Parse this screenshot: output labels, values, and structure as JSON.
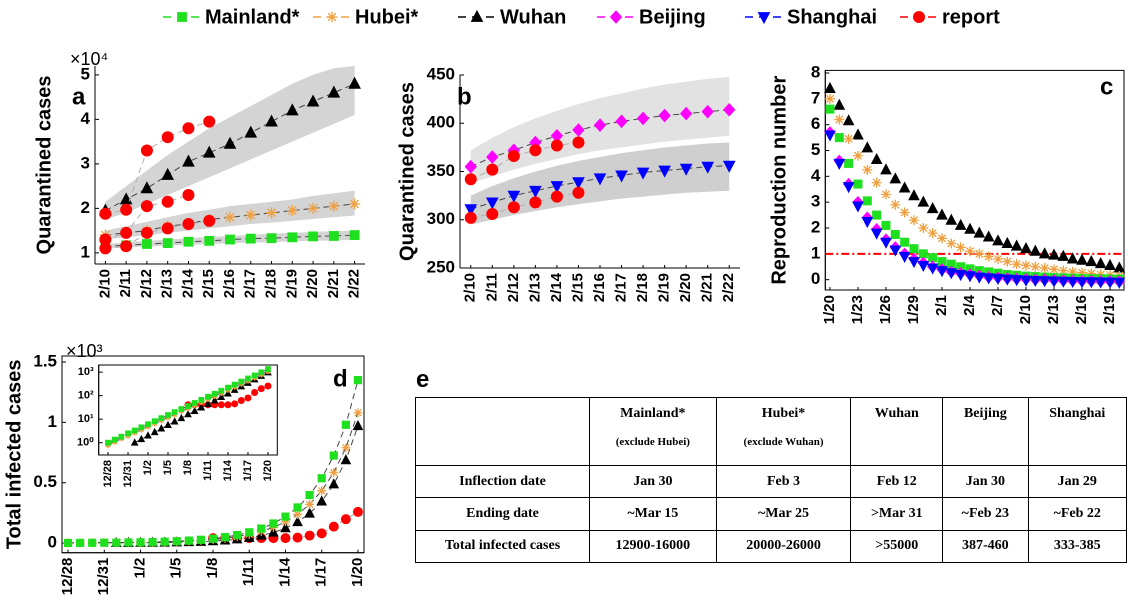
{
  "legend": {
    "entries": [
      {
        "name": "Mainland*",
        "color": "#1ee01e",
        "marker": "square"
      },
      {
        "name": "Hubei*",
        "color": "#f0a040",
        "marker": "asterisk"
      },
      {
        "name": "Wuhan",
        "color": "#000000",
        "marker": "triangle"
      },
      {
        "name": "Beijing",
        "color": "#ff00ff",
        "marker": "diamond"
      },
      {
        "name": "Shanghai",
        "color": "#0000ff",
        "marker": "down"
      },
      {
        "name": "report",
        "color": "#ff0000",
        "marker": "circle"
      }
    ]
  },
  "chart_data": [
    {
      "type": "line",
      "label": "a",
      "y_label": "Quarantined cases",
      "y_multiplier": "×10⁴",
      "connect": true,
      "categories": [
        "2/10",
        "2/11",
        "2/12",
        "2/13",
        "2/14",
        "2/15",
        "2/16",
        "2/17",
        "2/18",
        "2/19",
        "2/20",
        "2/21",
        "2/22"
      ],
      "ylim": [
        0.75,
        5.2
      ],
      "yticks": [
        1,
        2,
        3,
        4,
        5
      ],
      "bands": [
        {
          "color": "#d4d4d4",
          "lower": [
            1.75,
            1.9,
            2.1,
            2.3,
            2.5,
            2.7,
            2.9,
            3.1,
            3.3,
            3.5,
            3.7,
            3.9,
            4.1
          ],
          "upper": [
            2.15,
            2.5,
            2.85,
            3.2,
            3.5,
            3.8,
            4.05,
            4.3,
            4.55,
            4.8,
            5.0,
            5.15,
            5.2
          ]
        },
        {
          "color": "#d4d4d4",
          "lower": [
            1.3,
            1.35,
            1.4,
            1.45,
            1.5,
            1.55,
            1.6,
            1.65,
            1.68,
            1.72,
            1.76,
            1.8,
            1.84
          ],
          "upper": [
            1.5,
            1.6,
            1.7,
            1.8,
            1.9,
            1.97,
            2.05,
            2.1,
            2.15,
            2.2,
            2.28,
            2.34,
            2.4
          ]
        },
        {
          "color": "#d4d4d4",
          "lower": [
            1.1,
            1.12,
            1.14,
            1.16,
            1.18,
            1.2,
            1.22,
            1.23,
            1.24,
            1.26,
            1.27,
            1.28,
            1.29
          ],
          "upper": [
            1.2,
            1.24,
            1.27,
            1.3,
            1.33,
            1.36,
            1.38,
            1.41,
            1.43,
            1.45,
            1.47,
            1.49,
            1.5
          ]
        }
      ],
      "series": [
        {
          "name": "Wuhan",
          "color": "#000000",
          "marker": "triangle",
          "values": [
            1.95,
            2.2,
            2.45,
            2.75,
            3.05,
            3.25,
            3.45,
            3.7,
            3.95,
            4.2,
            4.4,
            4.6,
            4.8
          ]
        },
        {
          "name": "Hubei*",
          "color": "#f0a040",
          "marker": "asterisk",
          "values": [
            1.4,
            1.45,
            1.5,
            1.6,
            1.65,
            1.75,
            1.8,
            1.85,
            1.9,
            1.95,
            2.0,
            2.05,
            2.1
          ]
        },
        {
          "name": "Mainland*",
          "color": "#1ee01e",
          "marker": "square",
          "values": [
            1.15,
            1.17,
            1.2,
            1.22,
            1.25,
            1.27,
            1.3,
            1.32,
            1.33,
            1.35,
            1.37,
            1.38,
            1.4
          ]
        },
        {
          "name": "report",
          "color": "#ff0000",
          "marker": "circle",
          "values": [
            1.88,
            1.97,
            3.3,
            3.6,
            3.8,
            3.95,
            null,
            null,
            null,
            null,
            null,
            null,
            null
          ]
        },
        {
          "name": "report",
          "color": "#ff0000",
          "marker": "circle",
          "values": [
            1.3,
            1.45,
            2.05,
            2.15,
            2.3,
            null,
            null,
            null,
            null,
            null,
            null,
            null,
            null
          ]
        },
        {
          "name": "report",
          "color": "#ff0000",
          "marker": "circle",
          "values": [
            1.1,
            1.15,
            1.45,
            1.55,
            1.65,
            1.72,
            null,
            null,
            null,
            null,
            null,
            null,
            null
          ]
        }
      ]
    },
    {
      "type": "line",
      "label": "b",
      "y_label": "Quarantined cases",
      "connect": true,
      "categories": [
        "2/10",
        "2/11",
        "2/12",
        "2/13",
        "2/14",
        "2/15",
        "2/16",
        "2/17",
        "2/18",
        "2/19",
        "2/20",
        "2/21",
        "2/22"
      ],
      "ylim": [
        250,
        450
      ],
      "yticks": [
        250,
        300,
        350,
        400,
        450
      ],
      "bands": [
        {
          "color": "#e2e2e2",
          "lower": [
            338,
            345,
            352,
            358,
            363,
            368,
            372,
            375,
            378,
            381,
            383,
            385,
            387
          ],
          "upper": [
            372,
            385,
            396,
            405,
            413,
            420,
            426,
            431,
            436,
            440,
            443,
            446,
            448
          ]
        },
        {
          "color": "#cfcfcf",
          "lower": [
            295,
            300,
            305,
            309,
            313,
            316,
            319,
            322,
            324,
            326,
            328,
            329,
            330
          ],
          "upper": [
            325,
            335,
            343,
            350,
            356,
            361,
            365,
            369,
            372,
            375,
            377,
            379,
            380
          ]
        }
      ],
      "series": [
        {
          "name": "Beijing",
          "color": "#ff00ff",
          "marker": "diamond",
          "values": [
            355,
            365,
            372,
            380,
            387,
            393,
            398,
            402,
            405,
            408,
            410,
            412,
            414
          ]
        },
        {
          "name": "Shanghai",
          "color": "#0000ff",
          "marker": "down",
          "values": [
            311,
            318,
            325,
            330,
            335,
            339,
            343,
            346,
            349,
            351,
            353,
            355,
            356
          ]
        },
        {
          "name": "report",
          "color": "#ff0000",
          "marker": "circle",
          "values": [
            342,
            352,
            366,
            372,
            377,
            380,
            null,
            null,
            null,
            null,
            null,
            null,
            null
          ]
        },
        {
          "name": "report",
          "color": "#ff0000",
          "marker": "circle",
          "values": [
            302,
            306,
            313,
            318,
            324,
            328,
            null,
            null,
            null,
            null,
            null,
            null,
            null
          ]
        }
      ]
    },
    {
      "type": "scatter",
      "label": "c",
      "y_label": "Reproduction number",
      "connect": false,
      "categories": [
        "1/20",
        null,
        null,
        "1/23",
        null,
        null,
        "1/26",
        null,
        null,
        "1/29",
        null,
        null,
        "2/1",
        null,
        null,
        "2/4",
        null,
        null,
        "2/7",
        null,
        null,
        "2/10",
        null,
        null,
        "2/13",
        null,
        null,
        "2/16",
        null,
        null,
        "2/19",
        null
      ],
      "ylim": [
        -0.4,
        8.1
      ],
      "yticks": [
        0,
        1,
        2,
        3,
        4,
        5,
        6,
        7,
        8
      ],
      "reference_line": {
        "value": 1,
        "color": "#ff0000"
      },
      "series": [
        {
          "name": "Wuhan",
          "color": "#000000",
          "marker": "triangle",
          "values": [
            7.4,
            6.75,
            6.15,
            5.6,
            5.1,
            4.65,
            4.25,
            3.9,
            3.55,
            3.25,
            3.0,
            2.75,
            2.5,
            2.3,
            2.1,
            1.95,
            1.8,
            1.65,
            1.5,
            1.4,
            1.3,
            1.2,
            1.1,
            1.0,
            0.95,
            0.9,
            0.8,
            0.75,
            0.7,
            0.62,
            0.55,
            0.45
          ]
        },
        {
          "name": "Hubei*",
          "color": "#f0a040",
          "marker": "asterisk",
          "values": [
            7.0,
            6.2,
            5.45,
            4.8,
            4.25,
            3.75,
            3.3,
            2.9,
            2.6,
            2.3,
            2.0,
            1.8,
            1.6,
            1.4,
            1.25,
            1.1,
            1.0,
            0.9,
            0.8,
            0.7,
            0.6,
            0.55,
            0.5,
            0.45,
            0.4,
            0.35,
            0.3,
            0.27,
            0.24,
            0.2,
            0.18,
            0.15
          ]
        },
        {
          "name": "Mainland*",
          "color": "#1ee01e",
          "marker": "square",
          "values": [
            6.6,
            5.5,
            4.5,
            3.7,
            3.05,
            2.5,
            2.1,
            1.75,
            1.45,
            1.2,
            1.0,
            0.85,
            0.7,
            0.6,
            0.5,
            0.42,
            0.35,
            0.3,
            0.25,
            0.2,
            0.17,
            0.14,
            0.12,
            0.1,
            0.08,
            0.07,
            0.06,
            0.05,
            0.04,
            0.03,
            0.03,
            0.02
          ]
        },
        {
          "name": "Beijing",
          "color": "#ff00ff",
          "marker": "diamond",
          "values": [
            5.7,
            4.6,
            3.7,
            3.0,
            2.4,
            1.95,
            1.55,
            1.25,
            1.0,
            0.8,
            0.65,
            0.5,
            0.4,
            0.3,
            0.25,
            0.2,
            0.15,
            0.1,
            0.08,
            0.05,
            0.03,
            0.02,
            0,
            0,
            -0.02,
            -0.03,
            -0.04,
            -0.05,
            -0.05,
            -0.06,
            -0.06,
            -0.07
          ]
        },
        {
          "name": "Shanghai",
          "color": "#0000ff",
          "marker": "down",
          "values": [
            5.6,
            4.5,
            3.6,
            2.85,
            2.25,
            1.8,
            1.45,
            1.15,
            0.9,
            0.7,
            0.55,
            0.45,
            0.35,
            0.27,
            0.2,
            0.15,
            0.1,
            0.07,
            0.05,
            0.02,
            0,
            -0.02,
            -0.03,
            -0.04,
            -0.05,
            -0.06,
            -0.07,
            -0.08,
            -0.08,
            -0.09,
            -0.09,
            -0.1
          ]
        }
      ]
    },
    {
      "type": "line",
      "label": "d",
      "y_label": "Total infected cases",
      "y_multiplier": "×10³",
      "connect": true,
      "categories": [
        "12/28",
        null,
        null,
        "12/31",
        null,
        null,
        "1/2",
        null,
        null,
        "1/5",
        null,
        null,
        "1/8",
        null,
        null,
        "1/11",
        null,
        null,
        "1/14",
        null,
        null,
        "1/17",
        null,
        null,
        "1/20"
      ],
      "ylim": [
        -0.08,
        1.55
      ],
      "yticks": [
        0,
        0.5,
        1,
        1.5
      ],
      "series": [
        {
          "name": "report",
          "color": "#ff0000",
          "marker": "circle",
          "values": [
            null,
            null,
            null,
            null,
            null,
            null,
            null,
            null,
            null,
            null,
            null,
            null,
            0.041,
            0.041,
            0.041,
            0.041,
            0.041,
            0.041,
            0.041,
            0.045,
            0.062,
            0.08,
            0.136,
            0.198,
            0.258
          ]
        },
        {
          "name": "Wuhan",
          "color": "#000000",
          "marker": "triangle",
          "values": [
            null,
            null,
            null,
            null,
            0.001,
            0.001,
            0.002,
            0.003,
            0.004,
            0.006,
            0.008,
            0.011,
            0.016,
            0.022,
            0.031,
            0.044,
            0.062,
            0.087,
            0.123,
            0.174,
            0.245,
            0.345,
            0.487,
            0.687,
            0.97
          ]
        },
        {
          "name": "Hubei*",
          "color": "#f0a040",
          "marker": "asterisk",
          "values": [
            0.001,
            0.001,
            0.002,
            0.002,
            0.003,
            0.004,
            0.005,
            0.007,
            0.009,
            0.012,
            0.016,
            0.022,
            0.029,
            0.039,
            0.053,
            0.072,
            0.097,
            0.13,
            0.176,
            0.238,
            0.321,
            0.433,
            0.585,
            0.79,
            1.08
          ]
        },
        {
          "name": "Mainland*",
          "color": "#1ee01e",
          "marker": "square",
          "values": [
            0.001,
            0.001,
            0.002,
            0.003,
            0.003,
            0.005,
            0.006,
            0.008,
            0.011,
            0.015,
            0.02,
            0.027,
            0.036,
            0.049,
            0.066,
            0.089,
            0.12,
            0.162,
            0.219,
            0.295,
            0.398,
            0.537,
            0.725,
            0.98,
            1.35
          ]
        }
      ]
    },
    {
      "type": "line",
      "log_y": true,
      "connect": true,
      "categories": [
        "12/28",
        null,
        null,
        "12/31",
        null,
        null,
        "1/2",
        null,
        null,
        "1/5",
        null,
        null,
        "1/8",
        null,
        null,
        "1/11",
        null,
        null,
        "1/14",
        null,
        null,
        "1/17",
        null,
        null,
        "1/20"
      ],
      "ylim": [
        0.3,
        1500
      ],
      "yticks": [
        {
          "value": 1,
          "label": "10⁰"
        },
        {
          "value": 10,
          "label": "10¹"
        },
        {
          "value": 100,
          "label": "10²"
        },
        {
          "value": 1000,
          "label": "10³"
        }
      ],
      "series": [
        {
          "name": "report",
          "color": "#ff0000",
          "marker": "circle",
          "values": [
            null,
            null,
            null,
            null,
            null,
            null,
            null,
            null,
            null,
            null,
            null,
            null,
            41,
            41,
            41,
            41,
            41,
            41,
            41,
            45,
            62,
            80,
            136,
            198,
            258
          ]
        },
        {
          "name": "Wuhan",
          "color": "#000000",
          "marker": "triangle",
          "values": [
            null,
            null,
            null,
            null,
            1,
            1.41,
            2,
            2.8,
            4,
            5.6,
            7.9,
            11,
            16,
            22,
            31,
            44,
            62,
            87,
            123,
            174,
            245,
            345,
            487,
            687,
            970
          ]
        },
        {
          "name": "Hubei*",
          "color": "#f0a040",
          "marker": "asterisk",
          "values": [
            0.8,
            1.1,
            1.5,
            2,
            2.7,
            3.6,
            4.9,
            6.6,
            8.9,
            12,
            16,
            22,
            29,
            39,
            53,
            72,
            97,
            130,
            176,
            238,
            321,
            433,
            585,
            790,
            1080
          ]
        },
        {
          "name": "Mainland*",
          "color": "#1ee01e",
          "marker": "square",
          "values": [
            1,
            1.35,
            1.8,
            2.5,
            3.3,
            4.5,
            6.1,
            8.2,
            11,
            15,
            20,
            27,
            36,
            49,
            66,
            89,
            120,
            162,
            219,
            295,
            398,
            537,
            725,
            980,
            1350
          ]
        }
      ]
    }
  ],
  "table": {
    "label": "e",
    "header": [
      {
        "name": "Mainland*",
        "note": "(exclude Hubei)"
      },
      {
        "name": "Hubei*",
        "note": "(exclude Wuhan)"
      },
      {
        "name": "Wuhan"
      },
      {
        "name": "Beijing"
      },
      {
        "name": "Shanghai"
      }
    ],
    "rows": [
      [
        "Inflection date",
        "Jan 30",
        "Feb 3",
        "Feb 12",
        "Jan 30",
        "Jan 29"
      ],
      [
        "Ending date",
        "~Mar 15",
        "~Mar 25",
        ">Mar 31",
        "~Feb 23",
        "~Feb 22"
      ],
      [
        "Total infected cases",
        "12900-16000",
        "20000-26000",
        ">55000",
        "387-460",
        "333-385"
      ]
    ]
  }
}
